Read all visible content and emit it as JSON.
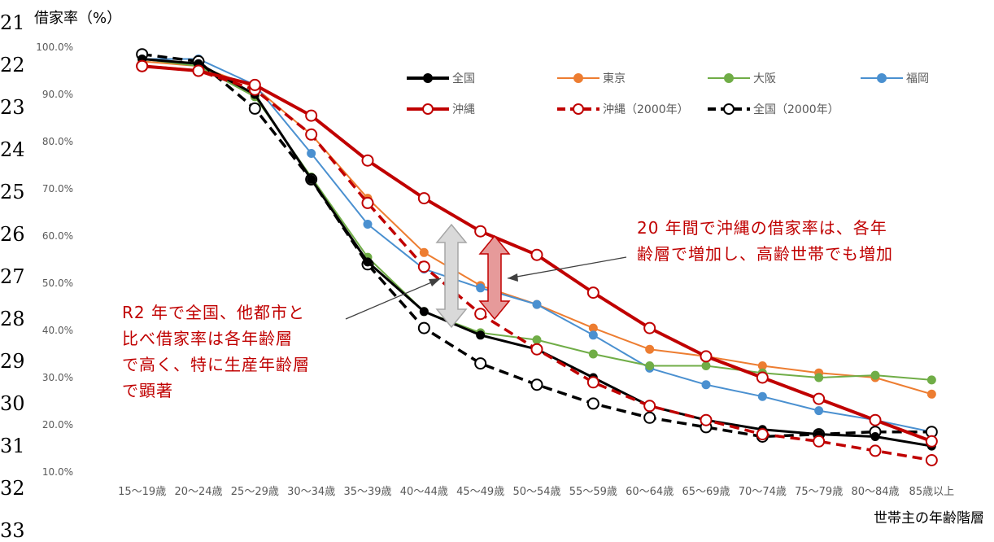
{
  "gutter_numbers": [
    "21",
    "22",
    "23",
    "24",
    "25",
    "26",
    "27",
    "28",
    "29",
    "30",
    "31",
    "32",
    "33"
  ],
  "y_axis_title": "借家率（%）",
  "x_axis_title": "世帯主の年齢階層",
  "annotations": {
    "right": "20 年間で沖縄の借家率は、各年\n齢層で増加し、高齢世帯でも増加",
    "left": "R2 年で全国、他都市と\n比べ借家率は各年齢層\nで高く、特に生産年齢層\nで顕著"
  },
  "chart_data": {
    "type": "line",
    "title": "",
    "xlabel": "世帯主の年齢階層",
    "ylabel": "借家率（%）",
    "ylim": [
      10,
      100
    ],
    "ytick_labels": [
      "10.0%",
      "20.0%",
      "30.0%",
      "40.0%",
      "50.0%",
      "60.0%",
      "70.0%",
      "80.0%",
      "90.0%",
      "100.0%"
    ],
    "grid": false,
    "legend_position": "top-right inside",
    "categories": [
      "15〜19歳",
      "20〜24歳",
      "25〜29歳",
      "30〜34歳",
      "35〜39歳",
      "40〜44歳",
      "45〜49歳",
      "50〜54歳",
      "55〜59歳",
      "60〜64歳",
      "65〜69歳",
      "70〜74歳",
      "75〜79歳",
      "80〜84歳",
      "85歳以上"
    ],
    "series": [
      {
        "name": "全国",
        "color": "#000000",
        "style": "solid",
        "marker": "filled",
        "values": [
          97.5,
          96.5,
          90.0,
          72.0,
          54.5,
          44.0,
          39.0,
          36.0,
          30.0,
          24.0,
          21.0,
          19.0,
          18.0,
          17.5,
          15.5
        ]
      },
      {
        "name": "東京",
        "color": "#ed7d31",
        "style": "solid",
        "marker": "filled",
        "values": [
          97.0,
          96.0,
          91.5,
          81.5,
          68.0,
          56.5,
          49.5,
          45.5,
          40.5,
          36.0,
          34.5,
          32.5,
          31.0,
          30.0,
          26.5
        ]
      },
      {
        "name": "大阪",
        "color": "#70ad47",
        "style": "solid",
        "marker": "filled",
        "values": [
          97.5,
          96.0,
          89.5,
          72.5,
          55.5,
          44.0,
          39.5,
          38.0,
          35.0,
          32.5,
          32.5,
          31.0,
          30.0,
          30.5,
          29.5
        ]
      },
      {
        "name": "福岡",
        "color": "#4a90d0",
        "style": "solid",
        "marker": "filled",
        "values": [
          97.5,
          97.5,
          92.0,
          77.5,
          62.5,
          53.0,
          49.0,
          45.5,
          39.0,
          32.0,
          28.5,
          26.0,
          23.0,
          21.0,
          18.5
        ]
      },
      {
        "name": "沖縄",
        "color": "#c00000",
        "style": "solid",
        "marker": "hollow",
        "values": [
          96.0,
          95.0,
          92.0,
          85.5,
          76.0,
          68.0,
          61.0,
          56.0,
          48.0,
          40.5,
          34.5,
          30.0,
          25.5,
          21.0,
          16.5
        ]
      },
      {
        "name": "沖縄（2000年）",
        "color": "#c00000",
        "style": "dashed",
        "marker": "hollow",
        "values": [
          96.0,
          95.0,
          91.0,
          81.5,
          67.0,
          53.5,
          43.5,
          36.0,
          29.0,
          24.0,
          21.0,
          18.0,
          16.5,
          14.5,
          12.5
        ]
      },
      {
        "name": "全国（2000年）",
        "color": "#000000",
        "style": "dashed",
        "marker": "hollow",
        "values": [
          98.5,
          97.0,
          87.0,
          72.0,
          54.0,
          40.5,
          33.0,
          28.5,
          24.5,
          21.5,
          19.5,
          17.5,
          18.0,
          18.5,
          18.5
        ]
      }
    ]
  }
}
